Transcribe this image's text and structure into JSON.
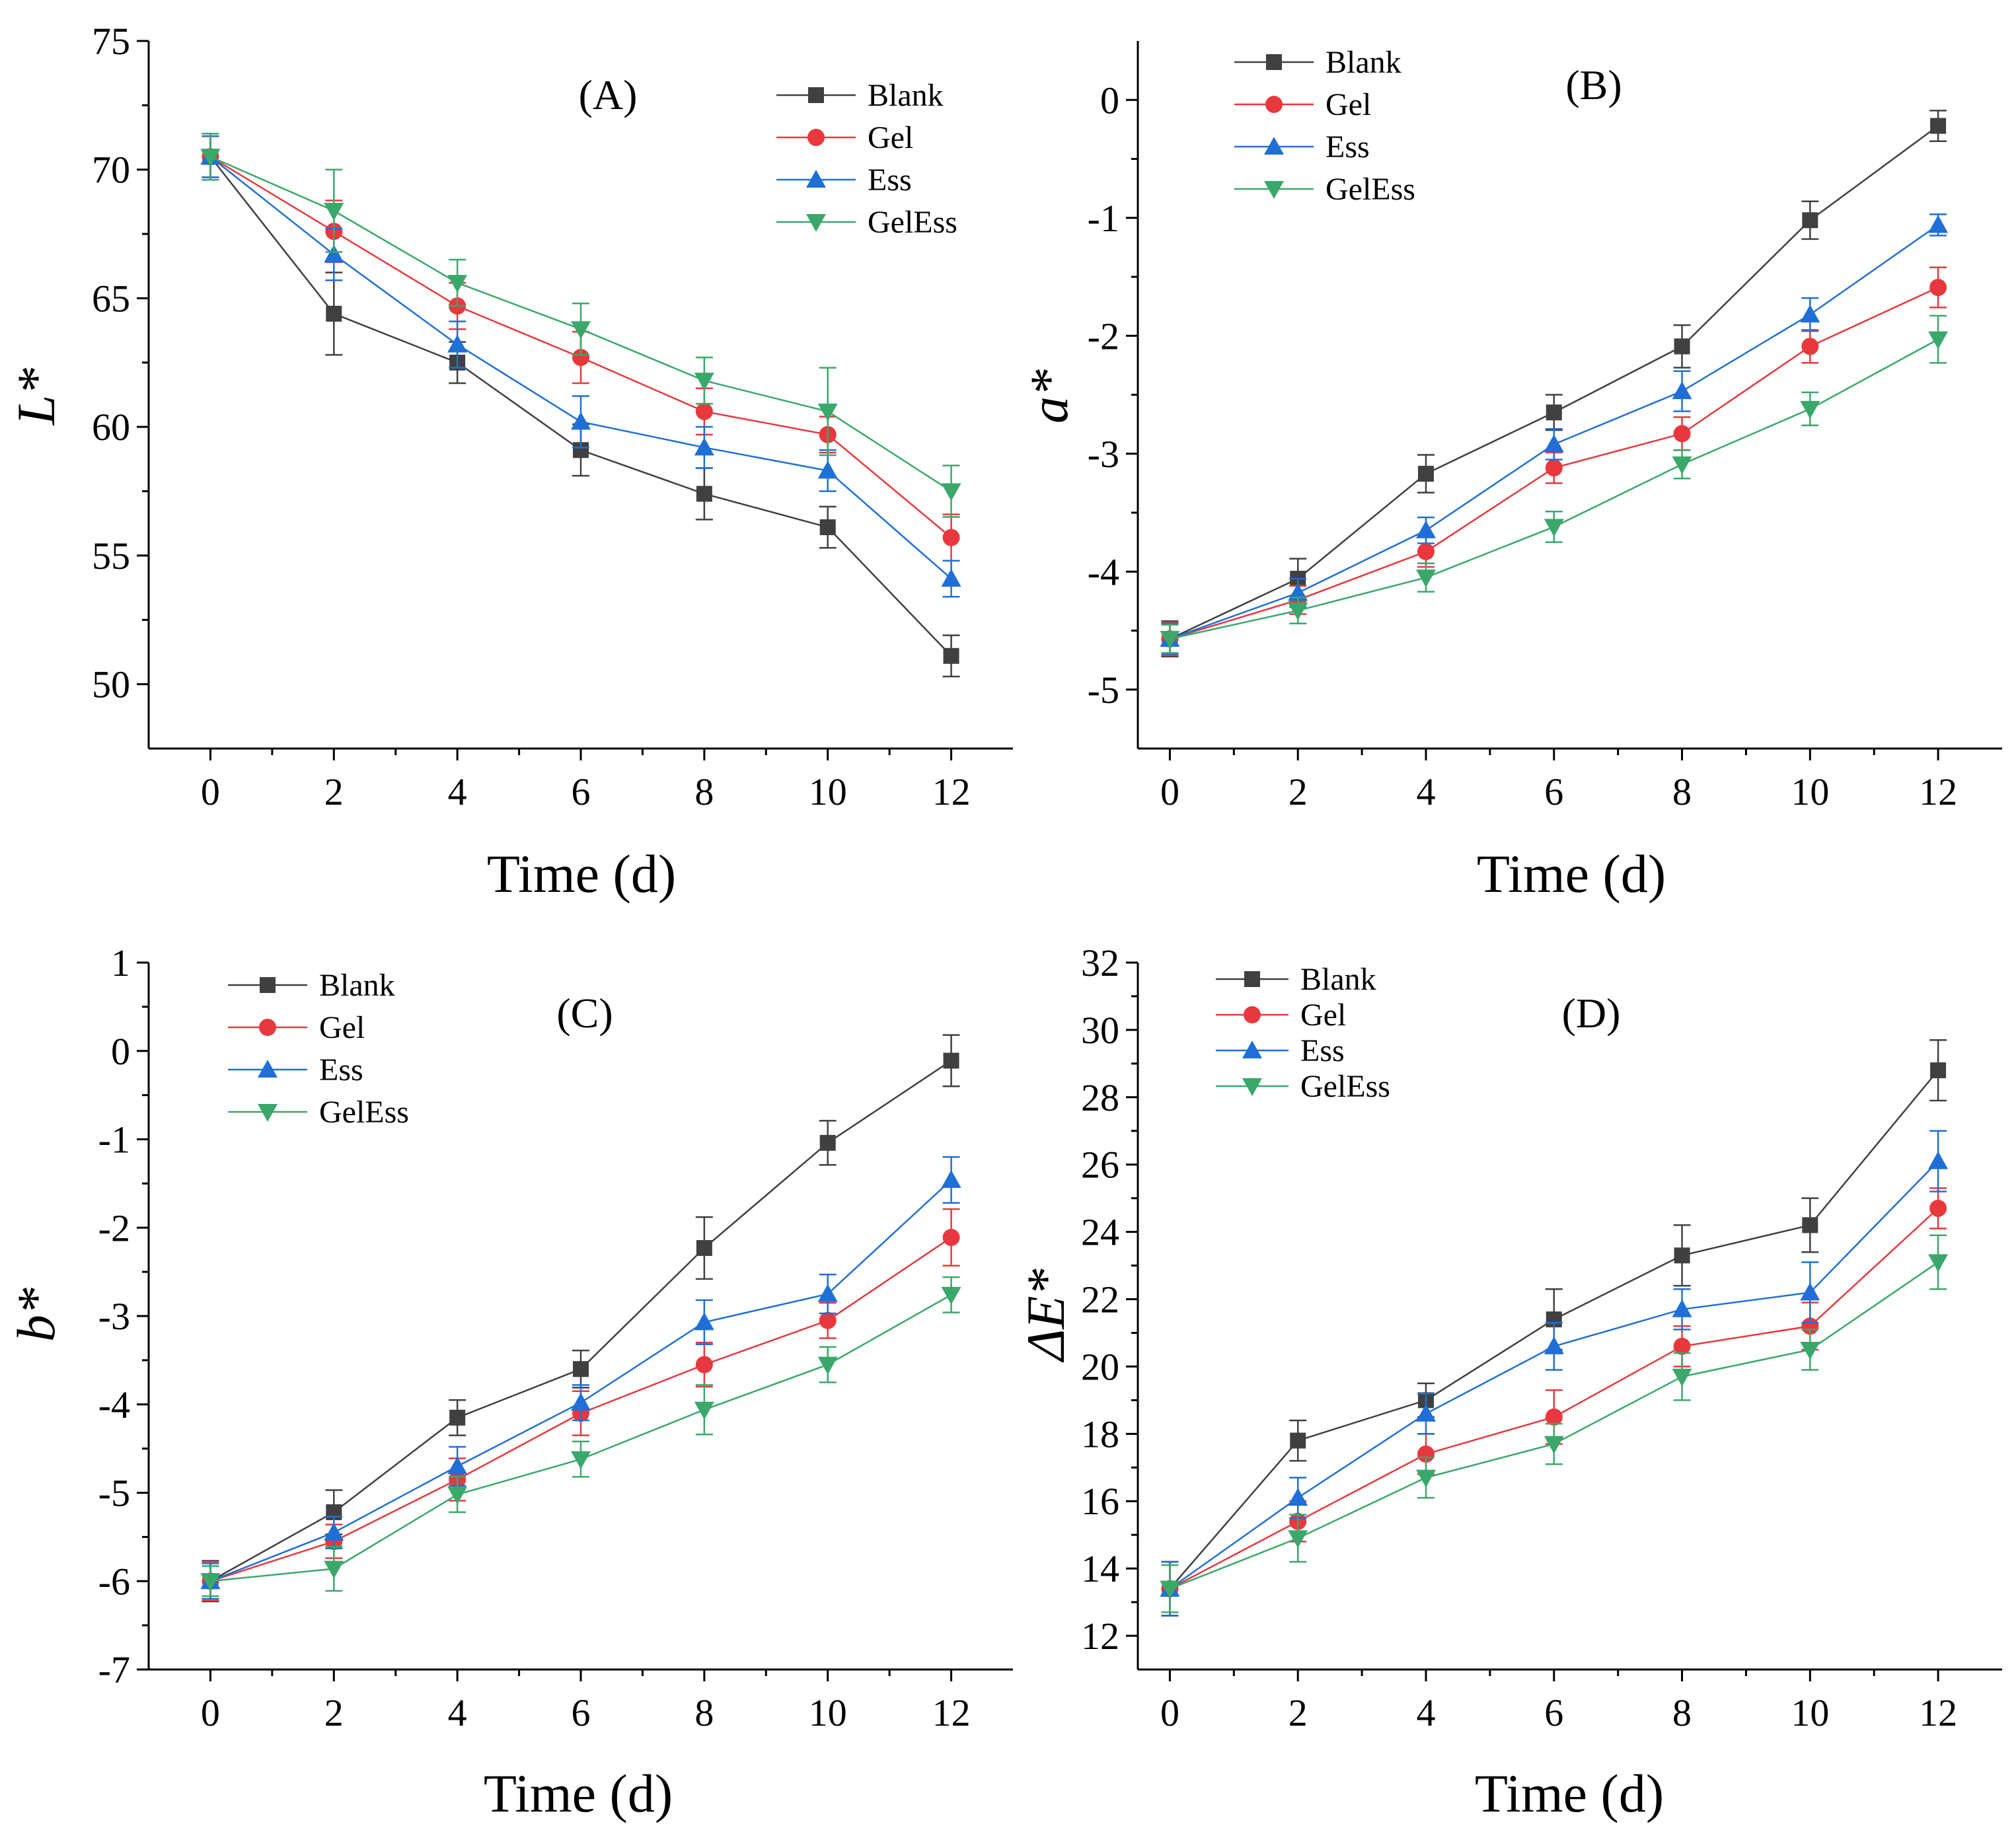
{
  "colors": {
    "Blank": "#404040",
    "Gel": "#e8383d",
    "Ess": "#1f6fd6",
    "GelEss": "#3aa86b"
  },
  "markers": {
    "Blank": "square",
    "Gel": "circle",
    "Ess": "triangle-up",
    "GelEss": "triangle-down"
  },
  "chart_data": [
    {
      "type": "line",
      "panel_label": "(A)",
      "xlabel": "Time (d)",
      "ylabel": "L*",
      "x": [
        0,
        2,
        4,
        6,
        8,
        10,
        12
      ],
      "xlim": [
        -1,
        13
      ],
      "ylim": [
        47.5,
        75
      ],
      "yticks": [
        50,
        55,
        60,
        65,
        70,
        75
      ],
      "yticks_text": [
        "50",
        "55",
        "60",
        "65",
        "70",
        "75"
      ],
      "legend": "top-right",
      "series": [
        {
          "name": "Blank",
          "values": [
            70.5,
            64.4,
            62.5,
            59.1,
            57.4,
            56.1,
            51.1
          ],
          "errors": [
            0.9,
            1.6,
            0.8,
            1.0,
            1.0,
            0.8,
            0.8
          ]
        },
        {
          "name": "Gel",
          "values": [
            70.5,
            67.6,
            64.7,
            62.7,
            60.6,
            59.7,
            55.7
          ],
          "errors": [
            0.8,
            1.2,
            0.9,
            1.0,
            0.9,
            0.7,
            0.9
          ]
        },
        {
          "name": "Ess",
          "values": [
            70.5,
            66.7,
            63.2,
            60.2,
            59.2,
            58.3,
            54.1
          ],
          "errors": [
            0.8,
            1.0,
            0.9,
            1.0,
            0.8,
            0.8,
            0.7
          ]
        },
        {
          "name": "GelEss",
          "values": [
            70.5,
            68.4,
            65.6,
            63.8,
            61.8,
            60.6,
            57.5
          ],
          "errors": [
            0.9,
            1.6,
            0.9,
            1.0,
            0.9,
            1.7,
            1.0
          ]
        }
      ]
    },
    {
      "type": "line",
      "panel_label": "(B)",
      "xlabel": "Time (d)",
      "ylabel": "a*",
      "x": [
        0,
        2,
        4,
        6,
        8,
        10,
        12
      ],
      "xlim": [
        -0.5,
        13
      ],
      "ylim": [
        -5.5,
        0.5
      ],
      "yticks": [
        -5,
        -4,
        -3,
        -2,
        -1,
        0
      ],
      "yticks_text": [
        "-5",
        "-4",
        "-3",
        "-2",
        "-1",
        "0"
      ],
      "legend": "top-left",
      "series": [
        {
          "name": "Blank",
          "values": [
            -4.57,
            -4.06,
            -3.17,
            -2.65,
            -2.09,
            -1.02,
            -0.22
          ],
          "errors": [
            0.15,
            0.17,
            0.16,
            0.15,
            0.18,
            0.16,
            0.13
          ]
        },
        {
          "name": "Gel",
          "values": [
            -4.57,
            -4.24,
            -3.83,
            -3.12,
            -2.83,
            -2.09,
            -1.59
          ],
          "errors": [
            0.14,
            0.12,
            0.13,
            0.13,
            0.14,
            0.14,
            0.17
          ]
        },
        {
          "name": "Ess",
          "values": [
            -4.57,
            -4.18,
            -3.65,
            -2.92,
            -2.47,
            -1.82,
            -1.06
          ],
          "errors": [
            0.13,
            0.12,
            0.11,
            0.13,
            0.17,
            0.14,
            0.09
          ]
        },
        {
          "name": "GelEss",
          "values": [
            -4.57,
            -4.33,
            -4.05,
            -3.62,
            -3.09,
            -2.62,
            -2.03
          ],
          "errors": [
            0.12,
            0.11,
            0.12,
            0.13,
            0.12,
            0.14,
            0.2
          ]
        }
      ]
    },
    {
      "type": "line",
      "panel_label": "(C)",
      "xlabel": "Time (d)",
      "ylabel": "b*",
      "x": [
        0,
        2,
        4,
        6,
        8,
        10,
        12
      ],
      "xlim": [
        -1,
        13
      ],
      "ylim": [
        -7,
        1
      ],
      "yticks": [
        -7,
        -6,
        -5,
        -4,
        -3,
        -2,
        -1,
        0,
        1
      ],
      "yticks_text": [
        "-7",
        "-6",
        "-5",
        "-4",
        "-3",
        "-2",
        "-1",
        "0",
        "1"
      ],
      "legend": "top-left",
      "series": [
        {
          "name": "Blank",
          "values": [
            -6.0,
            -5.22,
            -4.15,
            -3.6,
            -2.23,
            -1.04,
            -0.11
          ],
          "errors": [
            0.23,
            0.25,
            0.2,
            0.21,
            0.35,
            0.25,
            0.29
          ]
        },
        {
          "name": "Gel",
          "values": [
            -6.0,
            -5.55,
            -4.85,
            -4.1,
            -3.55,
            -3.05,
            -2.11
          ],
          "errors": [
            0.22,
            0.19,
            0.24,
            0.25,
            0.25,
            0.2,
            0.32
          ]
        },
        {
          "name": "Ess",
          "values": [
            -6.0,
            -5.45,
            -4.7,
            -3.98,
            -3.07,
            -2.75,
            -1.46
          ],
          "errors": [
            0.2,
            0.18,
            0.22,
            0.2,
            0.25,
            0.22,
            0.26
          ]
        },
        {
          "name": "GelEss",
          "values": [
            -6.0,
            -5.86,
            -5.02,
            -4.62,
            -4.06,
            -3.55,
            -2.76
          ],
          "errors": [
            0.17,
            0.25,
            0.2,
            0.2,
            0.28,
            0.2,
            0.2
          ]
        }
      ]
    },
    {
      "type": "line",
      "panel_label": "(D)",
      "xlabel": "Time (d)",
      "ylabel": "ΔE*",
      "x": [
        0,
        2,
        4,
        6,
        8,
        10,
        12
      ],
      "xlim": [
        -0.5,
        13
      ],
      "ylim": [
        11,
        32
      ],
      "yticks": [
        12,
        14,
        16,
        18,
        20,
        22,
        24,
        26,
        28,
        30,
        32
      ],
      "yticks_text": [
        "12",
        "14",
        "16",
        "18",
        "20",
        "22",
        "24",
        "26",
        "28",
        "30",
        "32"
      ],
      "legend": "top-left",
      "series": [
        {
          "name": "Blank",
          "values": [
            13.4,
            17.8,
            19.0,
            21.4,
            23.3,
            24.2,
            28.8
          ],
          "errors": [
            0.8,
            0.6,
            0.5,
            0.9,
            0.9,
            0.8,
            0.9
          ]
        },
        {
          "name": "Gel",
          "values": [
            13.4,
            15.4,
            17.4,
            18.5,
            20.6,
            21.2,
            24.7
          ],
          "errors": [
            0.8,
            0.6,
            0.6,
            0.8,
            0.6,
            0.7,
            0.6
          ]
        },
        {
          "name": "Ess",
          "values": [
            13.4,
            16.1,
            18.6,
            20.6,
            21.7,
            22.2,
            26.1
          ],
          "errors": [
            0.8,
            0.6,
            0.6,
            0.7,
            0.6,
            0.9,
            0.9
          ]
        },
        {
          "name": "GelEss",
          "values": [
            13.4,
            14.9,
            16.7,
            17.7,
            19.7,
            20.5,
            23.1
          ],
          "errors": [
            0.7,
            0.7,
            0.6,
            0.6,
            0.7,
            0.6,
            0.8
          ]
        }
      ]
    }
  ]
}
